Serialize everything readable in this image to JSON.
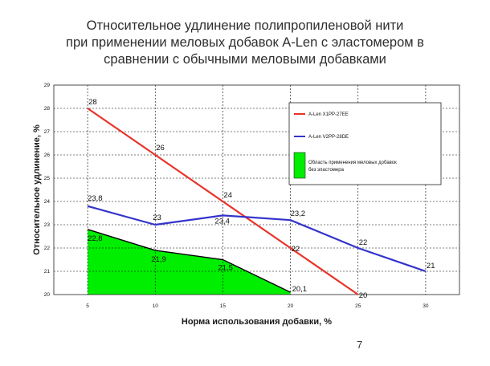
{
  "slide": {
    "title_lines": [
      "Относительное удлинение полипропиленовой нити",
      "при применении меловых добавок A-Len с эластомером в",
      "сравнении с обычными меловыми добавками"
    ],
    "page_number": "7"
  },
  "colors": {
    "red_series": "#e8332a",
    "blue_series": "#3333cc",
    "fill_area": "#00ee00",
    "grid": "#000000"
  },
  "chart_data": {
    "type": "line",
    "xlabel": "Норма использования добавки, %",
    "ylabel": "Относительное удлинение, %",
    "xlim": [
      2.5,
      32.5
    ],
    "ylim": [
      20,
      29
    ],
    "x_ticks": [
      "5",
      "10",
      "15",
      "20",
      "25",
      "30"
    ],
    "y_ticks": [
      "20",
      "21",
      "22",
      "23",
      "24",
      "25",
      "26",
      "27",
      "28",
      "29"
    ],
    "grid": true,
    "legend_position": "top-right",
    "series": [
      {
        "name": "A-Len X1PP-27EE",
        "color": "#e8332a",
        "x": [
          5,
          10,
          15,
          20,
          25
        ],
        "y": [
          28,
          26,
          24,
          22,
          20
        ],
        "labels": [
          "28",
          "26",
          "24",
          "22",
          "20"
        ]
      },
      {
        "name": "A-Len V2PP-28DE",
        "color": "#3333cc",
        "x": [
          5,
          10,
          15,
          20,
          25,
          30
        ],
        "y": [
          23.8,
          23,
          23.4,
          23.2,
          22,
          21
        ],
        "labels": [
          "23,8",
          "23",
          "23,4",
          "23,2",
          "22",
          "21"
        ]
      },
      {
        "name": "Область применения меловых добавок без эластомера",
        "type": "area",
        "color": "#00ee00",
        "x": [
          5,
          10,
          15,
          20
        ],
        "y": [
          22.8,
          21.9,
          21.5,
          20.1
        ],
        "labels": [
          "22,8",
          "21,9",
          "21,5",
          "20,1"
        ]
      }
    ]
  }
}
